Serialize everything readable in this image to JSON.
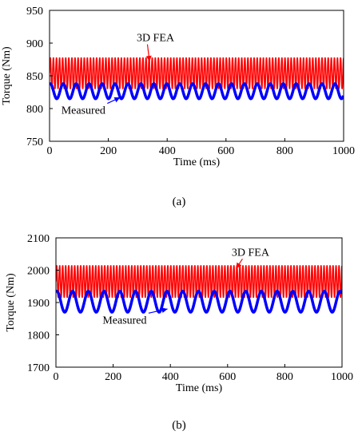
{
  "chart_data": [
    {
      "panel": "a",
      "type": "line",
      "xlabel": "Time (ms)",
      "ylabel": "Torque (Nm)",
      "xlim": [
        0,
        1000
      ],
      "ylim": [
        750,
        950
      ],
      "xticks": [
        0,
        200,
        400,
        600,
        800,
        1000
      ],
      "yticks": [
        750,
        800,
        850,
        900,
        950
      ],
      "grid": false,
      "caption": "(a)",
      "series": [
        {
          "name": "3D FEA",
          "color": "#ff0000",
          "shape": "sine",
          "min": 830,
          "max": 878,
          "period_ms": 10.5
        },
        {
          "name": "Measured",
          "color": "#0000ff",
          "shape": "sine",
          "min": 815,
          "max": 838,
          "period_ms": 44
        }
      ],
      "annotations": [
        {
          "text": "3D FEA",
          "series": "3D FEA",
          "label_x": 360,
          "label_y": 903,
          "arrow_to_x": 340,
          "arrow_to_y": 872
        },
        {
          "text": "Measured",
          "series": "Measured",
          "label_x": 115,
          "label_y": 792,
          "arrow_to_x": 240,
          "arrow_to_y": 817
        }
      ]
    },
    {
      "panel": "b",
      "type": "line",
      "xlabel": "Time (ms)",
      "ylabel": "Torque (Nm)",
      "xlim": [
        0,
        1000
      ],
      "ylim": [
        1700,
        2100
      ],
      "xticks": [
        0,
        200,
        400,
        600,
        800,
        1000
      ],
      "yticks": [
        1700,
        1800,
        1900,
        2000,
        2100
      ],
      "grid": false,
      "caption": "(b)",
      "series": [
        {
          "name": "3D FEA",
          "color": "#ff0000",
          "shape": "sine",
          "min": 1915,
          "max": 2015,
          "period_ms": 10.5
        },
        {
          "name": "Measured",
          "color": "#0000ff",
          "shape": "sine",
          "min": 1870,
          "max": 1935,
          "period_ms": 55
        }
      ],
      "annotations": [
        {
          "text": "3D FEA",
          "series": "3D FEA",
          "label_x": 680,
          "label_y": 2045,
          "arrow_to_x": 630,
          "arrow_to_y": 2005
        },
        {
          "text": "Measured",
          "series": "Measured",
          "label_x": 240,
          "label_y": 1835,
          "arrow_to_x": 390,
          "arrow_to_y": 1880
        }
      ]
    }
  ]
}
